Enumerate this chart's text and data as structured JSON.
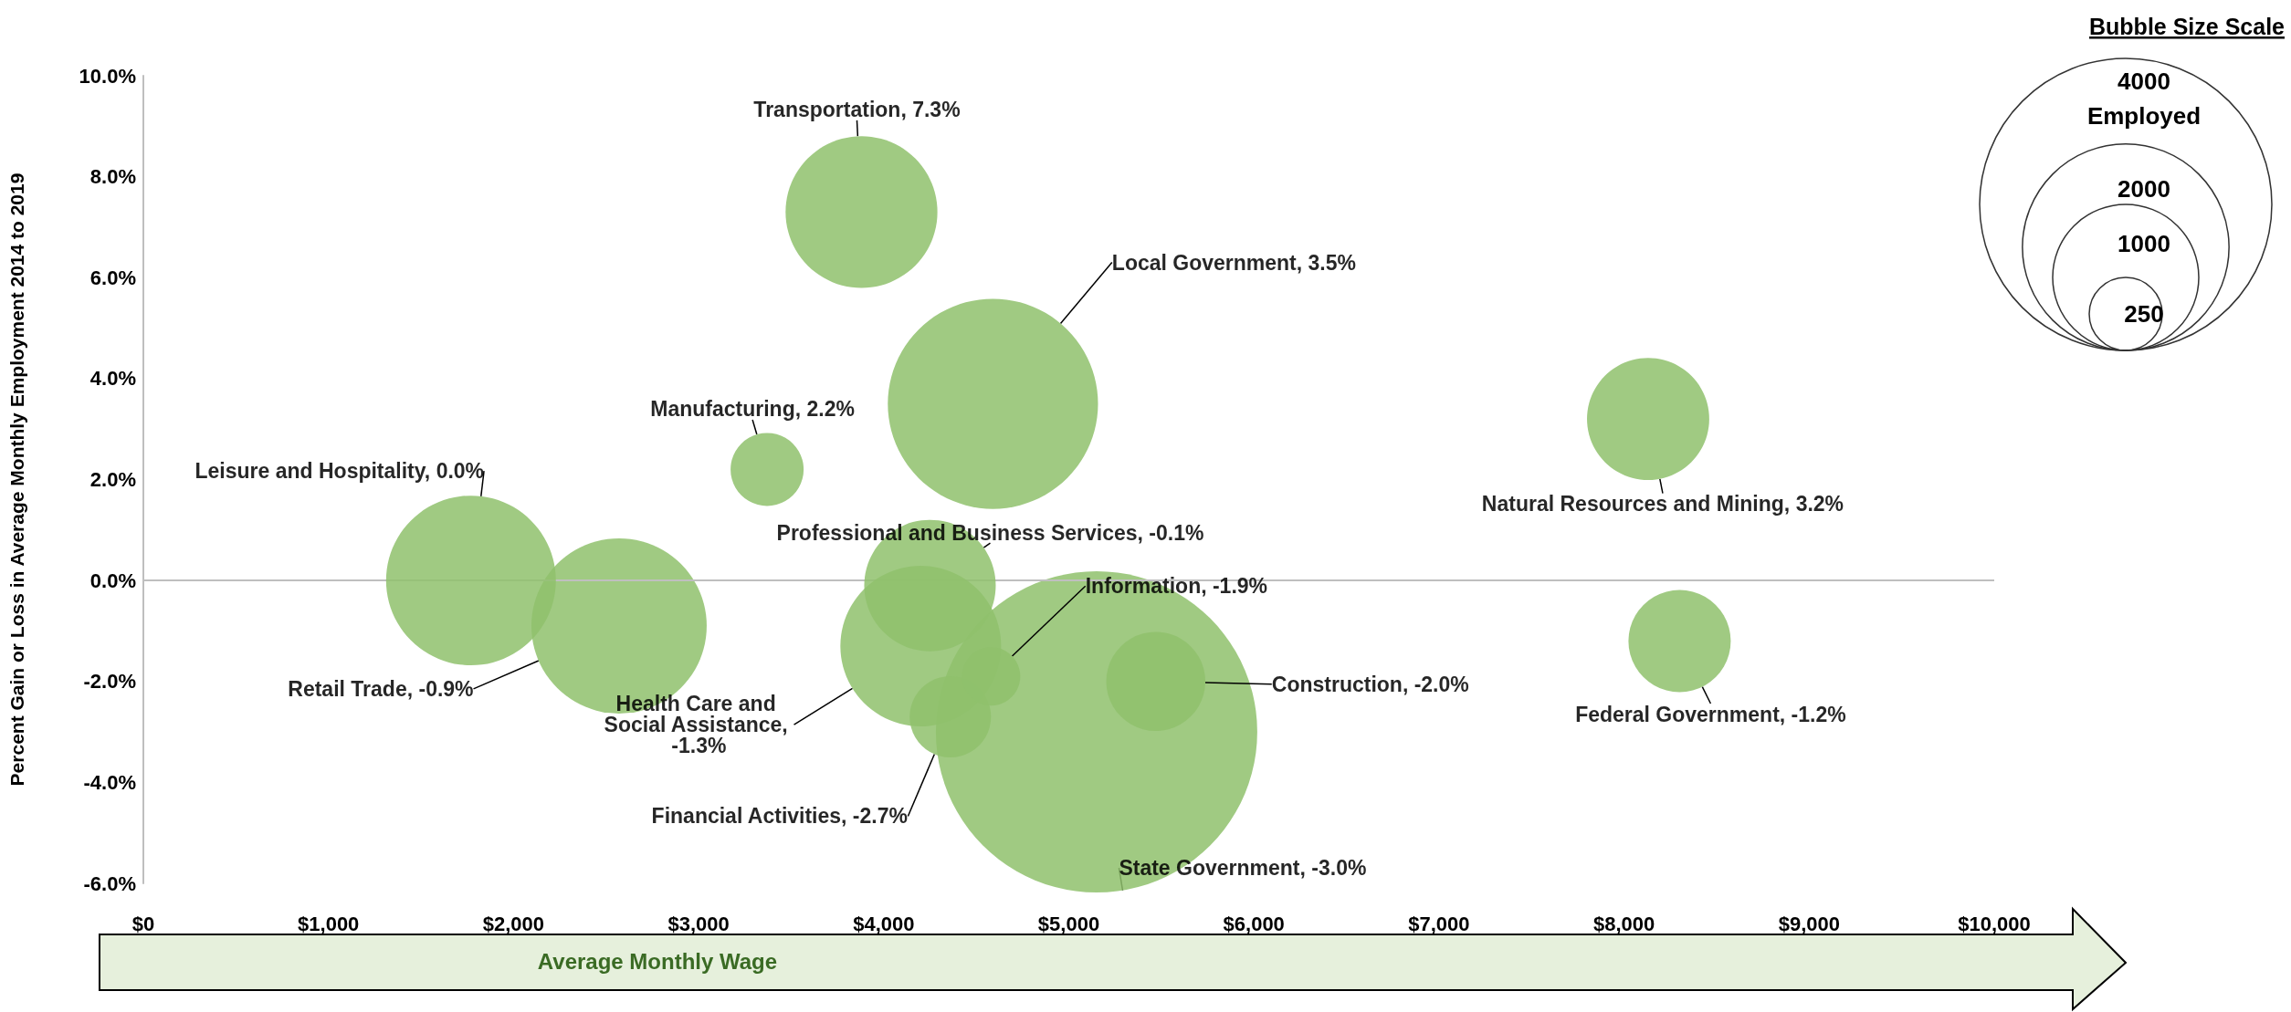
{
  "chart_data": {
    "type": "bubble",
    "ylabel": "Percent Gain or Loss in Average Monthly Employment 2014 to 2019",
    "xlabel": "Average Monthly Wage",
    "legend_title": "Bubble Size Scale",
    "annotations": [
      "Employed"
    ],
    "size_legend": [
      250,
      1000,
      2000,
      4000
    ],
    "xlim": [
      0,
      10000
    ],
    "xticks": [
      {
        "value": 0,
        "label": "$0"
      },
      {
        "value": 1000,
        "label": "$1,000"
      },
      {
        "value": 2000,
        "label": "$2,000"
      },
      {
        "value": 3000,
        "label": "$3,000"
      },
      {
        "value": 4000,
        "label": "$4,000"
      },
      {
        "value": 5000,
        "label": "$5,000"
      },
      {
        "value": 6000,
        "label": "$6,000"
      },
      {
        "value": 7000,
        "label": "$7,000"
      },
      {
        "value": 8000,
        "label": "$8,000"
      },
      {
        "value": 9000,
        "label": "$9,000"
      },
      {
        "value": 10000,
        "label": "$10,000"
      }
    ],
    "ylim": [
      -6,
      10
    ],
    "yticks": [
      {
        "value": -6,
        "label": "-6.0%"
      },
      {
        "value": -4,
        "label": "-4.0%"
      },
      {
        "value": -2,
        "label": "-2.0%"
      },
      {
        "value": 0,
        "label": "0.0%"
      },
      {
        "value": 2,
        "label": "2.0%"
      },
      {
        "value": 4,
        "label": "4.0%"
      },
      {
        "value": 6,
        "label": "6.0%"
      },
      {
        "value": 8,
        "label": "8.0%"
      },
      {
        "value": 10,
        "label": "10.0%"
      }
    ],
    "ref_lines": [
      {
        "axis": "y",
        "value": 0,
        "color": "#bfbfbf"
      }
    ],
    "grid": false,
    "series": [
      {
        "color": "#8fc16c",
        "x": [
          3880
        ],
        "values": [
          7.3
        ],
        "sizes": [
          1080
        ],
        "value_labels": [
          "Transportation, 7.3%"
        ]
      },
      {
        "color": "#8fc16c",
        "x": [
          4590
        ],
        "values": [
          3.5
        ],
        "sizes": [
          2070
        ],
        "value_labels": [
          "Local Government, 3.5%"
        ]
      },
      {
        "color": "#8fc16c",
        "x": [
          3370
        ],
        "values": [
          2.2
        ],
        "sizes": [
          250
        ],
        "value_labels": [
          "Manufacturing, 2.2%"
        ]
      },
      {
        "color": "#8fc16c",
        "x": [
          1770
        ],
        "values": [
          0.0
        ],
        "sizes": [
          1350
        ],
        "value_labels": [
          "Leisure and Hospitality, 0.0%"
        ]
      },
      {
        "color": "#8fc16c",
        "x": [
          2570
        ],
        "values": [
          -0.9
        ],
        "sizes": [
          1440
        ],
        "value_labels": [
          "Retail Trade, -0.9%"
        ]
      },
      {
        "color": "#8fc16c",
        "x": [
          4250
        ],
        "values": [
          -0.1
        ],
        "sizes": [
          810
        ],
        "value_labels": [
          "Professional and Business Services, -0.1%"
        ]
      },
      {
        "color": "#8fc16c",
        "x": [
          4200
        ],
        "values": [
          -1.3
        ],
        "sizes": [
          1210
        ],
        "value_labels": [
          "Health Care and Social Assistance, -1.3%"
        ]
      },
      {
        "color": "#8fc16c",
        "x": [
          4580
        ],
        "values": [
          -1.9
        ],
        "sizes": [
          160
        ],
        "value_labels": [
          "Information, -1.9%"
        ]
      },
      {
        "color": "#8fc16c",
        "x": [
          4360
        ],
        "values": [
          -2.7
        ],
        "sizes": [
          310
        ],
        "value_labels": [
          "Financial Activities, -2.7%"
        ]
      },
      {
        "color": "#8fc16c",
        "x": [
          5150
        ],
        "values": [
          -3.0
        ],
        "sizes": [
          4840
        ],
        "value_labels": [
          "State Government, -3.0%"
        ]
      },
      {
        "color": "#8fc16c",
        "x": [
          5470
        ],
        "values": [
          -2.0
        ],
        "sizes": [
          460
        ],
        "value_labels": [
          "Construction, -2.0%"
        ]
      },
      {
        "color": "#8fc16c",
        "x": [
          8130
        ],
        "values": [
          3.2
        ],
        "sizes": [
          700
        ],
        "value_labels": [
          "Natural Resources and Mining, 3.2%"
        ]
      },
      {
        "color": "#8fc16c",
        "x": [
          8300
        ],
        "values": [
          -1.2
        ],
        "sizes": [
          490
        ],
        "value_labels": [
          "Federal Government, -1.2%"
        ]
      }
    ]
  }
}
